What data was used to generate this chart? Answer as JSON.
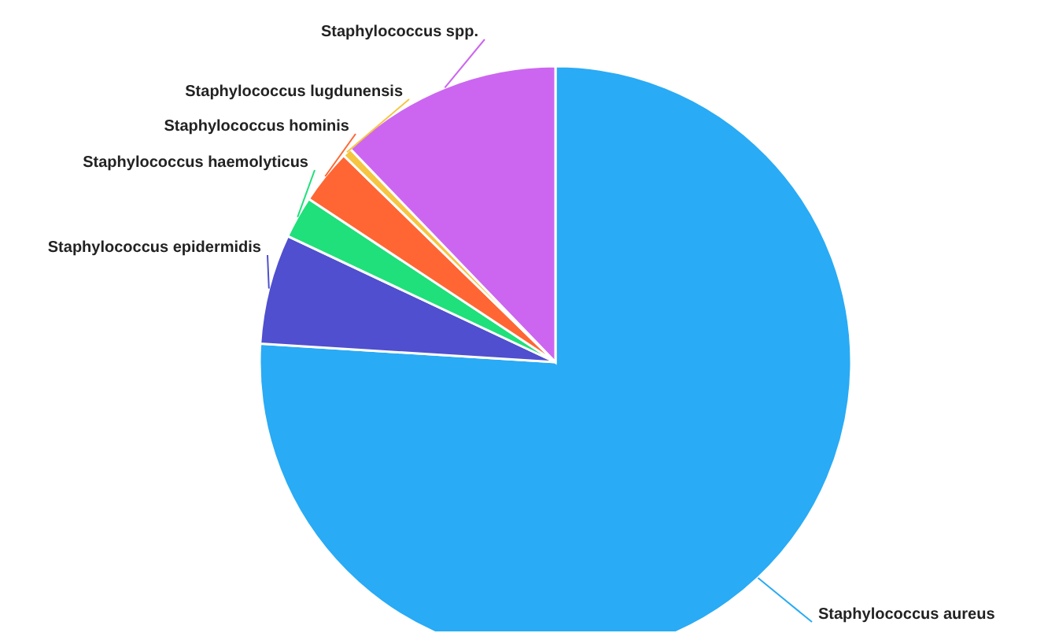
{
  "chart_data": {
    "type": "pie",
    "categories": [
      "Staphylococcus aureus",
      "Staphylococcus epidermidis",
      "Staphylococcus haemolyticus",
      "Staphylococcus hominis",
      "Staphylococcus lugdunensis",
      "Staphylococcus spp."
    ],
    "values": [
      76,
      6,
      2.3,
      3,
      0.5,
      12.2
    ],
    "colors": [
      "#29abf5",
      "#4f4fcf",
      "#1fe07a",
      "#ff6633",
      "#f5c542",
      "#cc66f0"
    ]
  }
}
